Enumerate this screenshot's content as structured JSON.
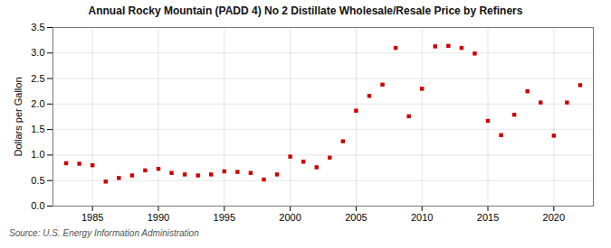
{
  "chart_data": {
    "type": "scatter",
    "title": "Annual Rocky Mountain (PADD 4) No 2 Distillate Wholesale/Resale Price by Refiners",
    "ylabel": "Dollars per Gallon",
    "source": "Source: U.S. Energy Information Administration",
    "x": [
      1983,
      1984,
      1985,
      1986,
      1987,
      1988,
      1989,
      1990,
      1991,
      1992,
      1993,
      1994,
      1995,
      1996,
      1997,
      1998,
      1999,
      2000,
      2001,
      2002,
      2003,
      2004,
      2005,
      2006,
      2007,
      2008,
      2009,
      2010,
      2011,
      2012,
      2013,
      2014,
      2015,
      2016,
      2017,
      2018,
      2019,
      2020,
      2021,
      2022
    ],
    "values": [
      0.84,
      0.83,
      0.8,
      0.48,
      0.55,
      0.6,
      0.7,
      0.73,
      0.65,
      0.62,
      0.6,
      0.62,
      0.68,
      0.67,
      0.65,
      0.52,
      0.62,
      0.97,
      0.87,
      0.76,
      0.95,
      1.27,
      1.87,
      2.16,
      2.38,
      3.1,
      1.76,
      2.3,
      3.13,
      3.14,
      3.1,
      2.99,
      1.67,
      1.39,
      1.79,
      2.25,
      2.03,
      1.38,
      2.03,
      2.37
    ],
    "color": "#cc0000",
    "marker": "square",
    "xlim": [
      1982,
      2023
    ],
    "ylim": [
      0.0,
      3.5
    ],
    "xticks": [
      1985,
      1990,
      1995,
      2000,
      2005,
      2010,
      2015,
      2020
    ],
    "yticks": [
      {
        "value": 0.0,
        "label": "0.0"
      },
      0.5,
      {
        "value": 1.0,
        "label": "1.0"
      },
      1.5,
      {
        "value": 2.0,
        "label": "2.0"
      },
      2.5,
      {
        "value": 3.0,
        "label": "3.0"
      },
      3.5
    ],
    "grid": true
  }
}
